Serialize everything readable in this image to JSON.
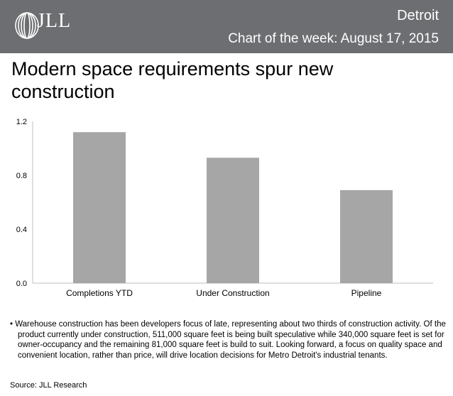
{
  "header": {
    "logo_text": "JLL",
    "city": "Detroit",
    "subtitle": "Chart of the week: August 17, 2015",
    "background": "#6d6e71"
  },
  "title": "Modern space requirements spur new construction",
  "chart_data": {
    "type": "bar",
    "categories": [
      "Completions YTD",
      "Under Construction",
      "Pipeline"
    ],
    "values": [
      1.12,
      0.93,
      0.69
    ],
    "ylim": [
      0,
      1.2
    ],
    "yticks": [
      "0.0",
      "0.4",
      "0.8",
      "1.2"
    ],
    "ytick_values": [
      0,
      0.4,
      0.8,
      1.2
    ],
    "bar_color": "#a6a6a6",
    "grid": false,
    "legend": "none"
  },
  "bullet": "• Warehouse construction has been developers focus of late, representing about two thirds of construction activity. Of the product currently under construction, 511,000 square feet is being built speculative while 340,000 square feet is set for owner-occupancy and the remaining 81,000 square feet is build to suit. Looking forward, a focus on quality space and convenient location, rather than price, will drive location decisions for Metro Detroit's industrial tenants.",
  "source": "Source: JLL Research"
}
